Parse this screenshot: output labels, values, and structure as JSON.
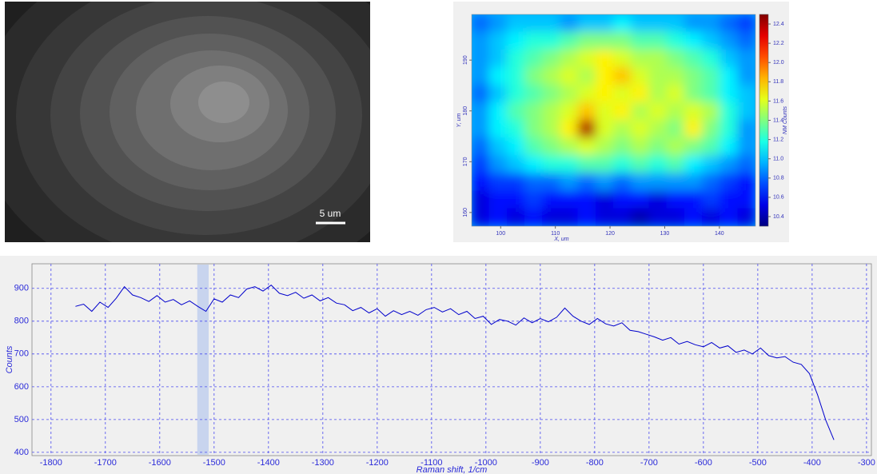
{
  "image": {
    "scale_bar_label": "5 um"
  },
  "chart_data": [
    {
      "type": "heatmap",
      "x_label": "X, um",
      "y_label": "Y, um",
      "colorbar_label": "NM Counts",
      "xlim": [
        94.7,
        146.6
      ],
      "ylim": [
        157.3,
        199
      ],
      "zlim": [
        10.3,
        12.5
      ],
      "xticks": [
        100,
        110,
        120,
        130,
        140
      ],
      "yticks": [
        160,
        170,
        180,
        190
      ],
      "zticks": [
        10.4,
        10.6,
        10.8,
        {
          "value": 11,
          "label": "11.0"
        },
        11.2,
        11.4,
        11.6,
        11.8,
        {
          "value": 12,
          "label": "12.0"
        },
        12.2,
        12.4
      ],
      "z": [
        [
          10.8,
          10.9,
          11.0,
          11.0,
          11.0,
          10.9,
          11.0,
          11.0,
          11.1,
          11.0,
          11.0,
          11.0,
          10.9,
          10.9,
          10.8,
          10.7
        ],
        [
          10.9,
          11.0,
          11.1,
          11.2,
          11.2,
          11.3,
          11.4,
          11.4,
          11.4,
          11.3,
          11.3,
          11.2,
          11.1,
          11.0,
          10.9,
          10.8
        ],
        [
          10.9,
          11.0,
          11.2,
          11.3,
          11.4,
          11.5,
          11.6,
          11.7,
          11.6,
          11.5,
          11.5,
          11.4,
          11.3,
          11.2,
          11.0,
          10.9
        ],
        [
          10.9,
          11.1,
          11.2,
          11.4,
          11.5,
          11.6,
          11.5,
          11.7,
          11.8,
          11.6,
          11.5,
          11.5,
          11.4,
          11.3,
          11.1,
          10.9
        ],
        [
          10.8,
          11.0,
          11.2,
          11.3,
          11.4,
          11.5,
          11.6,
          11.7,
          11.6,
          11.7,
          11.5,
          11.6,
          11.4,
          11.3,
          11.1,
          11.0
        ],
        [
          10.9,
          11.1,
          11.3,
          11.4,
          11.5,
          11.6,
          11.8,
          11.6,
          11.7,
          11.5,
          11.6,
          11.5,
          11.6,
          11.5,
          11.2,
          11.0
        ],
        [
          10.9,
          11.1,
          11.2,
          11.4,
          11.5,
          11.7,
          12.4,
          11.6,
          11.5,
          11.6,
          11.5,
          11.4,
          11.7,
          11.4,
          11.2,
          10.9
        ],
        [
          10.8,
          11.0,
          11.1,
          11.3,
          11.4,
          11.5,
          11.6,
          11.5,
          11.4,
          11.5,
          11.4,
          11.5,
          11.4,
          11.3,
          11.1,
          10.9
        ],
        [
          10.7,
          10.9,
          11.0,
          11.1,
          11.2,
          11.2,
          11.3,
          11.3,
          11.2,
          11.3,
          11.2,
          11.3,
          11.1,
          11.0,
          10.9,
          10.8
        ],
        [
          10.6,
          10.7,
          10.7,
          10.8,
          10.8,
          10.9,
          10.8,
          10.9,
          10.8,
          10.9,
          10.9,
          10.9,
          10.9,
          10.8,
          10.7,
          10.6
        ],
        [
          10.5,
          10.6,
          10.6,
          10.7,
          10.6,
          10.6,
          10.6,
          10.5,
          10.6,
          10.6,
          10.5,
          10.6,
          10.6,
          10.7,
          10.6,
          10.6
        ],
        [
          10.5,
          10.6,
          10.5,
          10.6,
          10.5,
          10.5,
          10.6,
          10.5,
          10.5,
          10.4,
          10.5,
          10.5,
          10.6,
          10.5,
          10.6,
          10.5
        ]
      ]
    },
    {
      "type": "line",
      "x_label": "Raman shift, 1/cm",
      "y_label": "Counts",
      "color": "#0000cc",
      "grid": true,
      "highlight_range": [
        -1531,
        -1510
      ],
      "xlim": [
        -1835,
        -291
      ],
      "ylim": [
        390,
        975
      ],
      "xticks": [
        -1800,
        -1700,
        -1600,
        -1500,
        -1400,
        -1300,
        -1200,
        -1100,
        -1000,
        -900,
        -800,
        -700,
        -600,
        -500,
        -400,
        -300
      ],
      "yticks": [
        400,
        500,
        600,
        700,
        800,
        900
      ],
      "x": [
        -1755,
        -1740,
        -1725,
        -1710,
        -1695,
        -1680,
        -1665,
        -1650,
        -1635,
        -1620,
        -1605,
        -1590,
        -1575,
        -1560,
        -1545,
        -1530,
        -1515,
        -1500,
        -1485,
        -1470,
        -1455,
        -1440,
        -1425,
        -1410,
        -1395,
        -1380,
        -1365,
        -1350,
        -1335,
        -1320,
        -1305,
        -1290,
        -1275,
        -1260,
        -1245,
        -1230,
        -1215,
        -1200,
        -1185,
        -1170,
        -1155,
        -1140,
        -1125,
        -1110,
        -1095,
        -1080,
        -1065,
        -1050,
        -1035,
        -1020,
        -1005,
        -990,
        -975,
        -960,
        -945,
        -930,
        -915,
        -900,
        -885,
        -870,
        -855,
        -840,
        -825,
        -810,
        -795,
        -780,
        -765,
        -750,
        -735,
        -720,
        -705,
        -690,
        -675,
        -660,
        -645,
        -630,
        -615,
        -600,
        -585,
        -570,
        -555,
        -540,
        -525,
        -510,
        -495,
        -480,
        -465,
        -450,
        -435,
        -420,
        -405,
        -390,
        -375,
        -360
      ],
      "values": [
        845,
        852,
        830,
        858,
        842,
        870,
        905,
        880,
        872,
        860,
        878,
        858,
        866,
        850,
        862,
        845,
        830,
        868,
        858,
        880,
        872,
        898,
        905,
        892,
        910,
        885,
        878,
        888,
        870,
        880,
        862,
        872,
        855,
        850,
        832,
        842,
        825,
        838,
        815,
        832,
        820,
        830,
        818,
        835,
        842,
        828,
        838,
        820,
        830,
        808,
        815,
        790,
        805,
        800,
        788,
        810,
        795,
        808,
        798,
        812,
        840,
        815,
        800,
        790,
        808,
        792,
        785,
        795,
        772,
        768,
        760,
        752,
        742,
        750,
        730,
        738,
        728,
        722,
        735,
        718,
        725,
        705,
        712,
        700,
        718,
        695,
        688,
        692,
        675,
        668,
        640,
        575,
        498,
        438
      ]
    }
  ]
}
